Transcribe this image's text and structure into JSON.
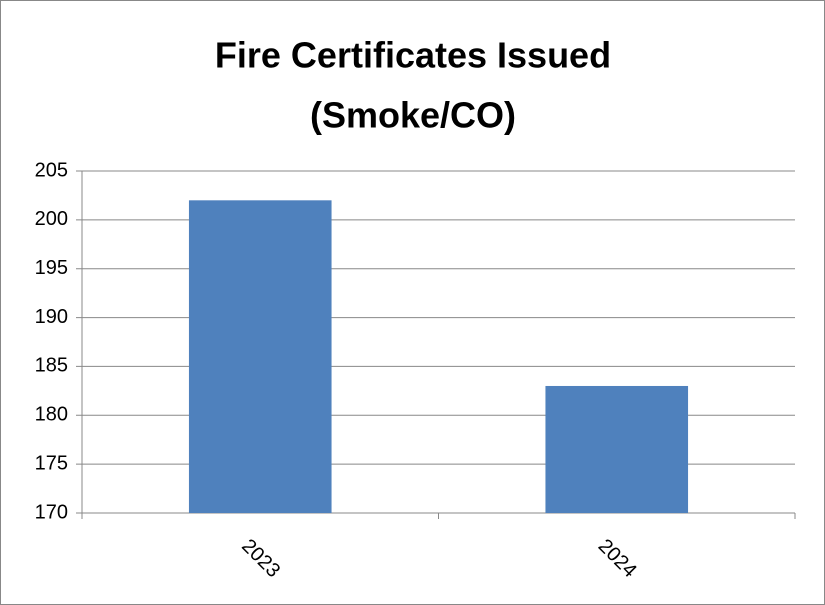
{
  "chart_data": {
    "type": "bar",
    "title": [
      "Fire Certificates Issued",
      "(Smoke/CO)"
    ],
    "categories": [
      "2023",
      "2024"
    ],
    "values": [
      202,
      183
    ],
    "color": "#4f81bd",
    "ylim": [
      170,
      205
    ],
    "yticks": [
      170,
      175,
      180,
      185,
      190,
      195,
      200,
      205
    ],
    "grid": true
  }
}
